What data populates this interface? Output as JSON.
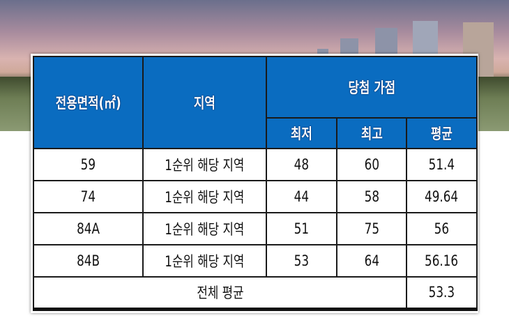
{
  "table": {
    "headers": {
      "area": "전용면적(㎡)",
      "region": "지역",
      "score_group": "당첨 가점",
      "min": "최저",
      "max": "최고",
      "avg": "평균"
    },
    "rows": [
      {
        "area": "59",
        "region": "1순위 해당 지역",
        "min": "48",
        "max": "60",
        "avg": "51.4"
      },
      {
        "area": "74",
        "region": "1순위 해당 지역",
        "min": "44",
        "max": "58",
        "avg": "49.64"
      },
      {
        "area": "84A",
        "region": "1순위 해당 지역",
        "min": "51",
        "max": "75",
        "avg": "56"
      },
      {
        "area": "84B",
        "region": "1순위 해당 지역",
        "min": "53",
        "max": "64",
        "avg": "56.16"
      }
    ],
    "total": {
      "label": "전체 평균",
      "avg": "53.3"
    }
  },
  "colors": {
    "header_bg": "#0a6cc0"
  }
}
